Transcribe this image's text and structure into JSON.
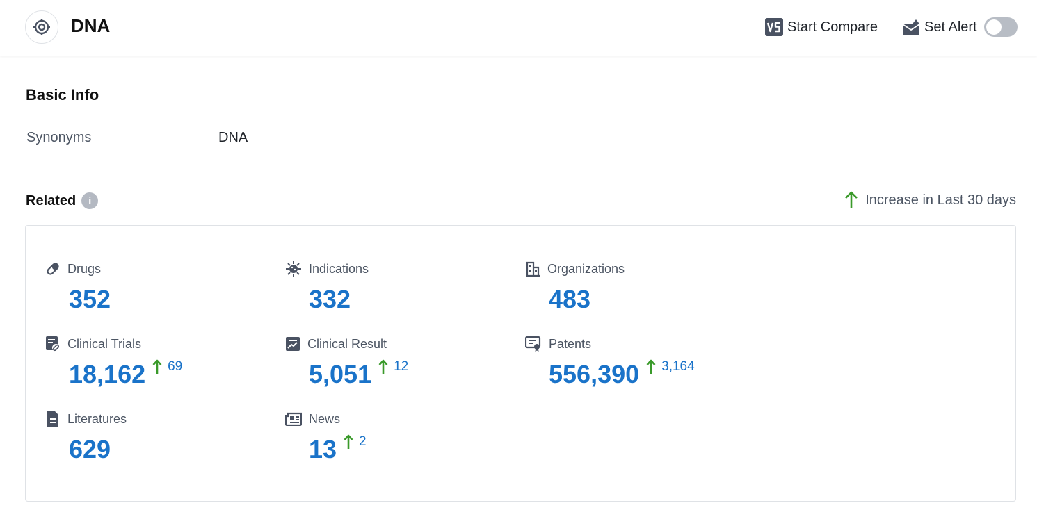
{
  "header": {
    "title": "DNA",
    "compare_label": "Start Compare",
    "alert_label": "Set Alert",
    "alert_enabled": false
  },
  "basic_info": {
    "title": "Basic Info",
    "synonyms_label": "Synonyms",
    "synonyms_value": "DNA"
  },
  "related": {
    "title": "Related",
    "increase_note": "Increase in Last 30 days",
    "colors": {
      "value": "#1a73c9",
      "increase_arrow": "#3a9a2a"
    },
    "stats": [
      {
        "label": "Drugs",
        "icon": "pill-icon",
        "value": "352",
        "increase": ""
      },
      {
        "label": "Indications",
        "icon": "virus-icon",
        "value": "332",
        "increase": ""
      },
      {
        "label": "Organizations",
        "icon": "building-icon",
        "value": "483",
        "increase": ""
      },
      {
        "label": "Clinical Trials",
        "icon": "clinical-trial-icon",
        "value": "18,162",
        "increase": "69"
      },
      {
        "label": "Clinical Result",
        "icon": "chart-report-icon",
        "value": "5,051",
        "increase": "12"
      },
      {
        "label": "Patents",
        "icon": "certificate-icon",
        "value": "556,390",
        "increase": "3,164"
      },
      {
        "label": "Literatures",
        "icon": "document-icon",
        "value": "629",
        "increase": ""
      },
      {
        "label": "News",
        "icon": "newspaper-icon",
        "value": "13",
        "increase": "2"
      }
    ]
  }
}
